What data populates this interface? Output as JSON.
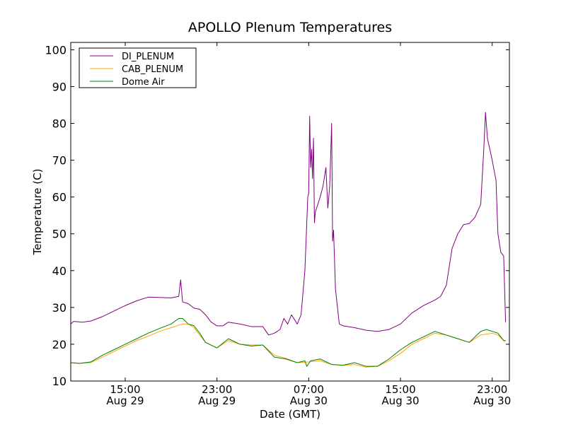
{
  "chart_data": {
    "type": "line",
    "title": "APOLLO Plenum Temperatures",
    "xlabel": "Date (GMT)",
    "ylabel": "Temperature (C)",
    "xlim": [
      "2011-08-29 10:15",
      "2011-08-31 00:30"
    ],
    "ylim": [
      10,
      102
    ],
    "grid": false,
    "legend_position": "top-left",
    "x_ticks": [
      {
        "x": "2011-08-29 15:00",
        "label": "15:00",
        "sublabel": "Aug 29"
      },
      {
        "x": "2011-08-29 23:00",
        "label": "23:00",
        "sublabel": "Aug 29"
      },
      {
        "x": "2011-08-30 07:00",
        "label": "07:00",
        "sublabel": "Aug 30"
      },
      {
        "x": "2011-08-30 15:00",
        "label": "15:00",
        "sublabel": "Aug 30"
      },
      {
        "x": "2011-08-30 23:00",
        "label": "23:00",
        "sublabel": "Aug 30"
      }
    ],
    "y_ticks": [
      10,
      20,
      30,
      40,
      50,
      60,
      70,
      80,
      90,
      100
    ],
    "series": [
      {
        "name": "DI_PLENUM",
        "color": "#800080",
        "points": [
          [
            "2011-08-29 10:15",
            25.5
          ],
          [
            "2011-08-29 10:30",
            26.2
          ],
          [
            "2011-08-29 11:15",
            26.0
          ],
          [
            "2011-08-29 12:00",
            26.3
          ],
          [
            "2011-08-29 13:00",
            27.5
          ],
          [
            "2011-08-29 14:00",
            29.0
          ],
          [
            "2011-08-29 15:00",
            30.5
          ],
          [
            "2011-08-29 16:00",
            31.8
          ],
          [
            "2011-08-29 17:00",
            32.8
          ],
          [
            "2011-08-29 18:00",
            32.7
          ],
          [
            "2011-08-29 19:00",
            32.6
          ],
          [
            "2011-08-29 19:40",
            33.0
          ],
          [
            "2011-08-29 19:50",
            37.5
          ],
          [
            "2011-08-29 20:00",
            31.5
          ],
          [
            "2011-08-29 20:30",
            31.0
          ],
          [
            "2011-08-29 21:00",
            29.8
          ],
          [
            "2011-08-29 21:30",
            29.5
          ],
          [
            "2011-08-29 22:00",
            28.0
          ],
          [
            "2011-08-29 22:30",
            26.0
          ],
          [
            "2011-08-29 23:00",
            25.0
          ],
          [
            "2011-08-29 23:30",
            25.0
          ],
          [
            "2011-08-30 00:00",
            26.0
          ],
          [
            "2011-08-30 01:00",
            25.5
          ],
          [
            "2011-08-30 02:00",
            24.8
          ],
          [
            "2011-08-30 03:00",
            24.8
          ],
          [
            "2011-08-30 03:30",
            22.5
          ],
          [
            "2011-08-30 04:00",
            23.0
          ],
          [
            "2011-08-30 04:30",
            24.0
          ],
          [
            "2011-08-30 04:50",
            27.0
          ],
          [
            "2011-08-30 05:10",
            25.5
          ],
          [
            "2011-08-30 05:30",
            28.0
          ],
          [
            "2011-08-30 06:00",
            25.5
          ],
          [
            "2011-08-30 06:20",
            28.0
          ],
          [
            "2011-08-30 06:40",
            40.0
          ],
          [
            "2011-08-30 06:55",
            60.0
          ],
          [
            "2011-08-30 07:00",
            61.0
          ],
          [
            "2011-08-30 07:05",
            82.0
          ],
          [
            "2011-08-30 07:10",
            68.0
          ],
          [
            "2011-08-30 07:15",
            73.0
          ],
          [
            "2011-08-30 07:20",
            65.0
          ],
          [
            "2011-08-30 07:25",
            76.0
          ],
          [
            "2011-08-30 07:30",
            53.0
          ],
          [
            "2011-08-30 07:35",
            56.0
          ],
          [
            "2011-08-30 08:00",
            60.0
          ],
          [
            "2011-08-30 08:15",
            63.0
          ],
          [
            "2011-08-30 08:30",
            68.0
          ],
          [
            "2011-08-30 08:40",
            57.0
          ],
          [
            "2011-08-30 08:50",
            63.0
          ],
          [
            "2011-08-30 09:00",
            80.0
          ],
          [
            "2011-08-30 09:05",
            48.0
          ],
          [
            "2011-08-30 09:10",
            51.0
          ],
          [
            "2011-08-30 09:20",
            35.0
          ],
          [
            "2011-08-30 09:40",
            25.5
          ],
          [
            "2011-08-30 10:00",
            25.0
          ],
          [
            "2011-08-30 11:00",
            24.5
          ],
          [
            "2011-08-30 12:00",
            23.8
          ],
          [
            "2011-08-30 13:00",
            23.5
          ],
          [
            "2011-08-30 14:00",
            24.0
          ],
          [
            "2011-08-30 15:00",
            25.5
          ],
          [
            "2011-08-30 16:00",
            28.5
          ],
          [
            "2011-08-30 17:00",
            30.5
          ],
          [
            "2011-08-30 18:00",
            32.0
          ],
          [
            "2011-08-30 18:30",
            33.0
          ],
          [
            "2011-08-30 19:00",
            36.0
          ],
          [
            "2011-08-30 19:30",
            46.0
          ],
          [
            "2011-08-30 20:00",
            50.0
          ],
          [
            "2011-08-30 20:30",
            52.5
          ],
          [
            "2011-08-30 21:00",
            52.8
          ],
          [
            "2011-08-30 21:30",
            54.5
          ],
          [
            "2011-08-30 22:00",
            58.0
          ],
          [
            "2011-08-30 22:15",
            72.0
          ],
          [
            "2011-08-30 22:25",
            83.0
          ],
          [
            "2011-08-30 22:35",
            76.0
          ],
          [
            "2011-08-30 23:00",
            70.0
          ],
          [
            "2011-08-30 23:20",
            64.5
          ],
          [
            "2011-08-30 23:30",
            50.0
          ],
          [
            "2011-08-30 23:45",
            45.0
          ],
          [
            "2011-08-31 00:00",
            44.0
          ],
          [
            "2011-08-31 00:10",
            26.0
          ]
        ]
      },
      {
        "name": "CAB_PLENUM",
        "color": "#ffa500",
        "points": [
          [
            "2011-08-29 10:15",
            15.0
          ],
          [
            "2011-08-29 11:00",
            14.8
          ],
          [
            "2011-08-29 12:00",
            15.0
          ],
          [
            "2011-08-29 13:00",
            16.5
          ],
          [
            "2011-08-29 14:00",
            18.0
          ],
          [
            "2011-08-29 15:00",
            19.5
          ],
          [
            "2011-08-29 16:00",
            21.0
          ],
          [
            "2011-08-29 17:00",
            22.2
          ],
          [
            "2011-08-29 18:00",
            23.5
          ],
          [
            "2011-08-29 19:00",
            24.5
          ],
          [
            "2011-08-29 20:00",
            25.5
          ],
          [
            "2011-08-29 20:30",
            25.5
          ],
          [
            "2011-08-29 21:00",
            24.5
          ],
          [
            "2011-08-29 21:30",
            22.5
          ],
          [
            "2011-08-29 22:00",
            20.5
          ],
          [
            "2011-08-29 23:00",
            19.0
          ],
          [
            "2011-08-30 00:00",
            21.0
          ],
          [
            "2011-08-30 01:00",
            20.0
          ],
          [
            "2011-08-30 02:00",
            19.8
          ],
          [
            "2011-08-30 03:00",
            19.8
          ],
          [
            "2011-08-30 04:00",
            17.0
          ],
          [
            "2011-08-30 05:00",
            16.2
          ],
          [
            "2011-08-30 06:00",
            15.0
          ],
          [
            "2011-08-30 07:00",
            15.2
          ],
          [
            "2011-08-30 08:00",
            15.5
          ],
          [
            "2011-08-30 09:00",
            14.5
          ],
          [
            "2011-08-30 10:00",
            14.3
          ],
          [
            "2011-08-30 11:00",
            14.5
          ],
          [
            "2011-08-30 12:00",
            13.8
          ],
          [
            "2011-08-30 13:00",
            14.0
          ],
          [
            "2011-08-30 14:00",
            15.5
          ],
          [
            "2011-08-30 15:00",
            17.5
          ],
          [
            "2011-08-30 16:00",
            20.0
          ],
          [
            "2011-08-30 17:00",
            21.5
          ],
          [
            "2011-08-30 18:00",
            23.0
          ],
          [
            "2011-08-30 19:00",
            22.5
          ],
          [
            "2011-08-30 20:00",
            21.5
          ],
          [
            "2011-08-30 21:00",
            20.5
          ],
          [
            "2011-08-30 21:30",
            21.5
          ],
          [
            "2011-08-30 22:00",
            22.5
          ],
          [
            "2011-08-30 23:00",
            23.0
          ],
          [
            "2011-08-30 23:30",
            22.5
          ],
          [
            "2011-08-31 00:00",
            21.0
          ],
          [
            "2011-08-31 00:10",
            20.8
          ]
        ]
      },
      {
        "name": "Dome Air",
        "color": "#008000",
        "points": [
          [
            "2011-08-29 10:15",
            15.0
          ],
          [
            "2011-08-29 11:00",
            14.8
          ],
          [
            "2011-08-29 12:00",
            15.2
          ],
          [
            "2011-08-29 13:00",
            17.0
          ],
          [
            "2011-08-29 14:00",
            18.5
          ],
          [
            "2011-08-29 15:00",
            20.0
          ],
          [
            "2011-08-29 16:00",
            21.5
          ],
          [
            "2011-08-29 17:00",
            23.0
          ],
          [
            "2011-08-29 18:00",
            24.3
          ],
          [
            "2011-08-29 19:00",
            25.5
          ],
          [
            "2011-08-29 19:40",
            27.0
          ],
          [
            "2011-08-29 20:00",
            27.0
          ],
          [
            "2011-08-29 20:30",
            25.5
          ],
          [
            "2011-08-29 21:00",
            25.0
          ],
          [
            "2011-08-29 21:30",
            23.0
          ],
          [
            "2011-08-29 22:00",
            20.5
          ],
          [
            "2011-08-29 23:00",
            19.0
          ],
          [
            "2011-08-30 00:00",
            21.5
          ],
          [
            "2011-08-30 01:00",
            20.0
          ],
          [
            "2011-08-30 02:00",
            19.5
          ],
          [
            "2011-08-30 03:00",
            19.8
          ],
          [
            "2011-08-30 04:00",
            16.5
          ],
          [
            "2011-08-30 05:00",
            16.0
          ],
          [
            "2011-08-30 06:00",
            15.0
          ],
          [
            "2011-08-30 06:40",
            15.5
          ],
          [
            "2011-08-30 06:50",
            14.0
          ],
          [
            "2011-08-30 07:10",
            15.5
          ],
          [
            "2011-08-30 08:00",
            16.0
          ],
          [
            "2011-08-30 09:00",
            14.5
          ],
          [
            "2011-08-30 10:00",
            14.3
          ],
          [
            "2011-08-30 11:00",
            15.0
          ],
          [
            "2011-08-30 12:00",
            14.0
          ],
          [
            "2011-08-30 13:00",
            14.0
          ],
          [
            "2011-08-30 14:00",
            16.0
          ],
          [
            "2011-08-30 15:00",
            18.5
          ],
          [
            "2011-08-30 16:00",
            20.5
          ],
          [
            "2011-08-30 17:00",
            22.0
          ],
          [
            "2011-08-30 18:00",
            23.5
          ],
          [
            "2011-08-30 19:00",
            22.5
          ],
          [
            "2011-08-30 20:00",
            21.5
          ],
          [
            "2011-08-30 21:00",
            20.5
          ],
          [
            "2011-08-30 21:30",
            22.0
          ],
          [
            "2011-08-30 22:00",
            23.5
          ],
          [
            "2011-08-30 22:30",
            24.0
          ],
          [
            "2011-08-30 23:00",
            23.5
          ],
          [
            "2011-08-30 23:30",
            23.0
          ],
          [
            "2011-08-31 00:00",
            21.0
          ],
          [
            "2011-08-31 00:10",
            21.0
          ]
        ]
      }
    ]
  }
}
